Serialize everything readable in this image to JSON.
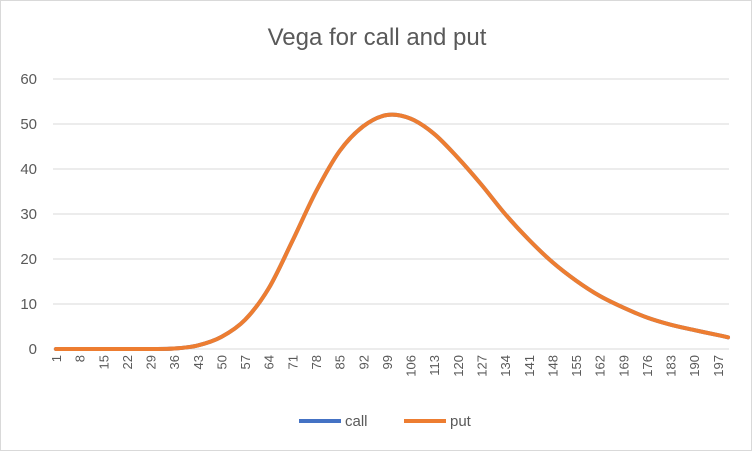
{
  "chart_data": {
    "type": "line",
    "title": "Vega for call and put",
    "xlabel": "",
    "ylabel": "",
    "ylim": [
      0,
      60
    ],
    "yticks": [
      0,
      10,
      20,
      30,
      40,
      50,
      60
    ],
    "xlim": [
      1,
      200
    ],
    "xticks": [
      1,
      8,
      15,
      22,
      29,
      36,
      43,
      50,
      57,
      64,
      71,
      78,
      85,
      92,
      99,
      106,
      113,
      120,
      127,
      134,
      141,
      148,
      155,
      162,
      169,
      176,
      183,
      190,
      197
    ],
    "grid": true,
    "legend_position": "bottom",
    "x": [
      1,
      8,
      15,
      22,
      29,
      36,
      43,
      50,
      57,
      64,
      71,
      78,
      85,
      92,
      99,
      106,
      113,
      120,
      127,
      134,
      141,
      148,
      155,
      162,
      169,
      176,
      183,
      190,
      197,
      200
    ],
    "series": [
      {
        "name": "call",
        "color": "#4472C4",
        "values": [
          0,
          0,
          0,
          0,
          0,
          0.1,
          0.8,
          2.7,
          6.5,
          13.5,
          24,
          35,
          44,
          49.5,
          52,
          51.2,
          47.8,
          42.5,
          36.5,
          30,
          24.3,
          19.3,
          15.2,
          11.8,
          9.2,
          7,
          5.4,
          4.2,
          3.1,
          2.6
        ]
      },
      {
        "name": "put",
        "color": "#ED7D31",
        "values": [
          0,
          0,
          0,
          0,
          0,
          0.1,
          0.8,
          2.7,
          6.5,
          13.5,
          24,
          35,
          44,
          49.5,
          52,
          51.2,
          47.8,
          42.5,
          36.5,
          30,
          24.3,
          19.3,
          15.2,
          11.8,
          9.2,
          7,
          5.4,
          4.2,
          3.1,
          2.6
        ]
      }
    ]
  }
}
